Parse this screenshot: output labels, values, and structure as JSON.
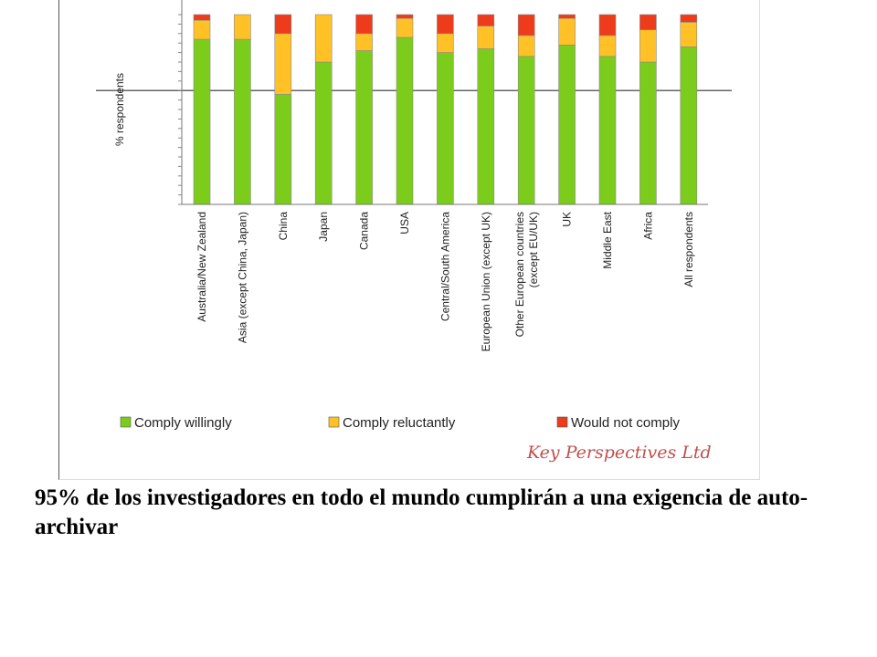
{
  "chart_data": {
    "type": "bar",
    "stacked": true,
    "ylabel": "% respondents",
    "ylim": [
      0,
      100
    ],
    "categories": [
      "Australia/New Zealand",
      "Asia (except China, Japan)",
      "China",
      "Japan",
      "Canada",
      "USA",
      "Central/South America",
      "European Union (except UK)",
      "Other European countries (except EU/UK)",
      "UK",
      "Middle East",
      "Africa",
      "All respondents"
    ],
    "series": [
      {
        "name": "Comply willingly",
        "color": "#7ccc1c",
        "values": [
          87,
          87,
          58,
          75,
          81,
          88,
          80,
          82,
          78,
          84,
          78,
          75,
          83
        ]
      },
      {
        "name": "Comply reluctantly",
        "color": "#ffc125",
        "values": [
          10,
          13,
          32,
          25,
          9,
          10,
          10,
          12,
          11,
          14,
          11,
          17,
          13
        ]
      },
      {
        "name": "Would not comply",
        "color": "#ee3b1b",
        "values": [
          3,
          0,
          10,
          0,
          10,
          2,
          10,
          6,
          11,
          2,
          11,
          8,
          4
        ]
      }
    ],
    "legend_position": "bottom",
    "watermark": "Key Perspectives Ltd"
  },
  "caption": "95% de los investigadores en todo el mundo cumplirán a una exigencia de auto-archivar"
}
